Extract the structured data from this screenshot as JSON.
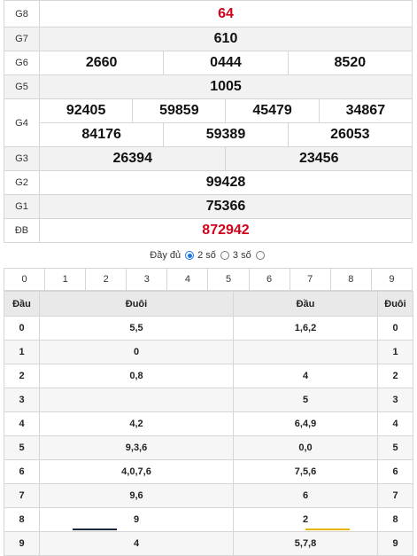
{
  "results": {
    "g8": {
      "label": "G8",
      "values": [
        "64"
      ]
    },
    "g7": {
      "label": "G7",
      "values": [
        "610"
      ]
    },
    "g6": {
      "label": "G6",
      "values": [
        "2660",
        "0444",
        "8520"
      ]
    },
    "g5": {
      "label": "G5",
      "values": [
        "1005"
      ]
    },
    "g4": {
      "label": "G4",
      "row1": [
        "92405",
        "59859",
        "45479",
        "34867"
      ],
      "row2": [
        "84176",
        "59389",
        "26053"
      ]
    },
    "g3": {
      "label": "G3",
      "values": [
        "26394",
        "23456"
      ]
    },
    "g2": {
      "label": "G2",
      "values": [
        "99428"
      ]
    },
    "g1": {
      "label": "G1",
      "values": [
        "75366"
      ]
    },
    "db": {
      "label": "ĐB",
      "values": [
        "872942"
      ]
    }
  },
  "colors": {
    "accent_red": "#d0021b",
    "radio_blue": "#1a73e8"
  },
  "filter": {
    "full": "Đầy đủ",
    "two": "2 số",
    "three": "3 số",
    "selected": "full"
  },
  "digits": [
    "0",
    "1",
    "2",
    "3",
    "4",
    "5",
    "6",
    "7",
    "8",
    "9"
  ],
  "dau_duoi": {
    "headers": [
      "Đầu",
      "Đuôi",
      "Đầu",
      "Đuôi"
    ],
    "rows": [
      {
        "d": "0",
        "duoi": "5,5",
        "dau": "1,6,2",
        "d2": "0"
      },
      {
        "d": "1",
        "duoi": "0",
        "dau": "",
        "d2": "1"
      },
      {
        "d": "2",
        "duoi": "0,8",
        "dau": "4",
        "d2": "2"
      },
      {
        "d": "3",
        "duoi": "",
        "dau": "5",
        "d2": "3"
      },
      {
        "d": "4",
        "duoi": "4,2",
        "dau": "6,4,9",
        "d2": "4"
      },
      {
        "d": "5",
        "duoi": "9,3,6",
        "dau": "0,0",
        "d2": "5"
      },
      {
        "d": "6",
        "duoi": "4,0,7,6",
        "dau": "7,5,6",
        "d2": "6"
      },
      {
        "d": "7",
        "duoi": "9,6",
        "dau": "6",
        "d2": "7"
      },
      {
        "d": "8",
        "duoi": "9",
        "dau": "2",
        "d2": "8"
      },
      {
        "d": "9",
        "duoi": "4",
        "dau": "5,7,8",
        "d2": "9"
      }
    ]
  }
}
